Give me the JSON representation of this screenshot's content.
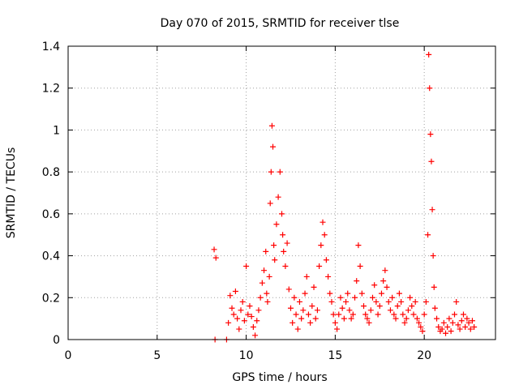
{
  "chart_data": {
    "type": "scatter",
    "title": "Day 070 of 2015, SRMTID for receiver tlse",
    "xlabel": "GPS time / hours",
    "ylabel": "SRMTID / TECUs",
    "xlim": [
      0,
      24
    ],
    "ylim": [
      0,
      1.4
    ],
    "xticks": [
      0,
      5,
      10,
      15,
      20
    ],
    "xtick_labels": [
      "0",
      "5",
      "10",
      "15",
      "20"
    ],
    "yticks": [
      0,
      0.2,
      0.4,
      0.6,
      0.8,
      1.0,
      1.2,
      1.4
    ],
    "ytick_labels": [
      "0",
      "0.2",
      "0.4",
      "0.6",
      "0.8",
      "1",
      "1.2",
      "1.4"
    ],
    "grid": true,
    "marker": "+",
    "color": "#ff0000",
    "series": [
      {
        "name": "SRMTID",
        "x": [
          8.2,
          8.25,
          8.3,
          8.9,
          9.0,
          9.1,
          9.2,
          9.3,
          9.4,
          9.5,
          9.6,
          9.7,
          9.8,
          9.9,
          10.0,
          10.1,
          10.2,
          10.3,
          10.4,
          10.5,
          10.6,
          10.7,
          10.8,
          10.9,
          11.0,
          11.1,
          11.15,
          11.2,
          11.3,
          11.35,
          11.4,
          11.45,
          11.5,
          11.55,
          11.6,
          11.7,
          11.8,
          11.9,
          12.0,
          12.05,
          12.1,
          12.2,
          12.3,
          12.4,
          12.5,
          12.6,
          12.7,
          12.8,
          12.9,
          13.0,
          13.1,
          13.2,
          13.3,
          13.4,
          13.5,
          13.6,
          13.7,
          13.8,
          13.9,
          14.0,
          14.1,
          14.2,
          14.3,
          14.4,
          14.5,
          14.6,
          14.7,
          14.8,
          14.9,
          15.0,
          15.1,
          15.2,
          15.3,
          15.4,
          15.5,
          15.6,
          15.7,
          15.8,
          15.9,
          16.0,
          16.1,
          16.2,
          16.3,
          16.4,
          16.5,
          16.6,
          16.7,
          16.8,
          16.9,
          17.0,
          17.1,
          17.2,
          17.3,
          17.4,
          17.5,
          17.6,
          17.7,
          17.8,
          17.9,
          18.0,
          18.1,
          18.2,
          18.3,
          18.4,
          18.5,
          18.6,
          18.7,
          18.8,
          18.9,
          19.0,
          19.1,
          19.2,
          19.3,
          19.4,
          19.5,
          19.6,
          19.7,
          19.8,
          19.9,
          20.0,
          20.1,
          20.2,
          20.25,
          20.3,
          20.35,
          20.4,
          20.45,
          20.5,
          20.55,
          20.6,
          20.7,
          20.8,
          20.9,
          21.0,
          21.1,
          21.2,
          21.3,
          21.4,
          21.5,
          21.6,
          21.7,
          21.8,
          21.9,
          22.0,
          22.1,
          22.2,
          22.3,
          22.4,
          22.5,
          22.6,
          22.7,
          22.8
        ],
        "y": [
          0.43,
          0.0,
          0.39,
          0.0,
          0.08,
          0.21,
          0.15,
          0.12,
          0.23,
          0.1,
          0.05,
          0.14,
          0.18,
          0.09,
          0.35,
          0.12,
          0.16,
          0.11,
          0.06,
          0.02,
          0.09,
          0.14,
          0.2,
          0.27,
          0.33,
          0.42,
          0.22,
          0.18,
          0.3,
          0.65,
          0.8,
          1.02,
          0.92,
          0.45,
          0.38,
          0.55,
          0.68,
          0.8,
          0.6,
          0.5,
          0.42,
          0.35,
          0.46,
          0.24,
          0.15,
          0.08,
          0.2,
          0.12,
          0.05,
          0.18,
          0.1,
          0.14,
          0.22,
          0.3,
          0.12,
          0.08,
          0.16,
          0.25,
          0.1,
          0.14,
          0.35,
          0.45,
          0.56,
          0.5,
          0.38,
          0.3,
          0.22,
          0.18,
          0.12,
          0.08,
          0.05,
          0.12,
          0.2,
          0.15,
          0.1,
          0.18,
          0.22,
          0.14,
          0.1,
          0.12,
          0.2,
          0.28,
          0.45,
          0.35,
          0.22,
          0.16,
          0.12,
          0.1,
          0.08,
          0.14,
          0.2,
          0.26,
          0.18,
          0.12,
          0.16,
          0.22,
          0.28,
          0.33,
          0.25,
          0.18,
          0.14,
          0.2,
          0.12,
          0.1,
          0.16,
          0.22,
          0.18,
          0.12,
          0.08,
          0.1,
          0.14,
          0.2,
          0.16,
          0.12,
          0.18,
          0.1,
          0.08,
          0.06,
          0.04,
          0.12,
          0.18,
          0.5,
          1.36,
          1.2,
          0.98,
          0.85,
          0.62,
          0.4,
          0.25,
          0.15,
          0.1,
          0.06,
          0.04,
          0.05,
          0.08,
          0.03,
          0.06,
          0.1,
          0.04,
          0.08,
          0.12,
          0.18,
          0.07,
          0.05,
          0.09,
          0.12,
          0.06,
          0.1,
          0.08,
          0.05,
          0.09,
          0.06
        ]
      }
    ]
  }
}
